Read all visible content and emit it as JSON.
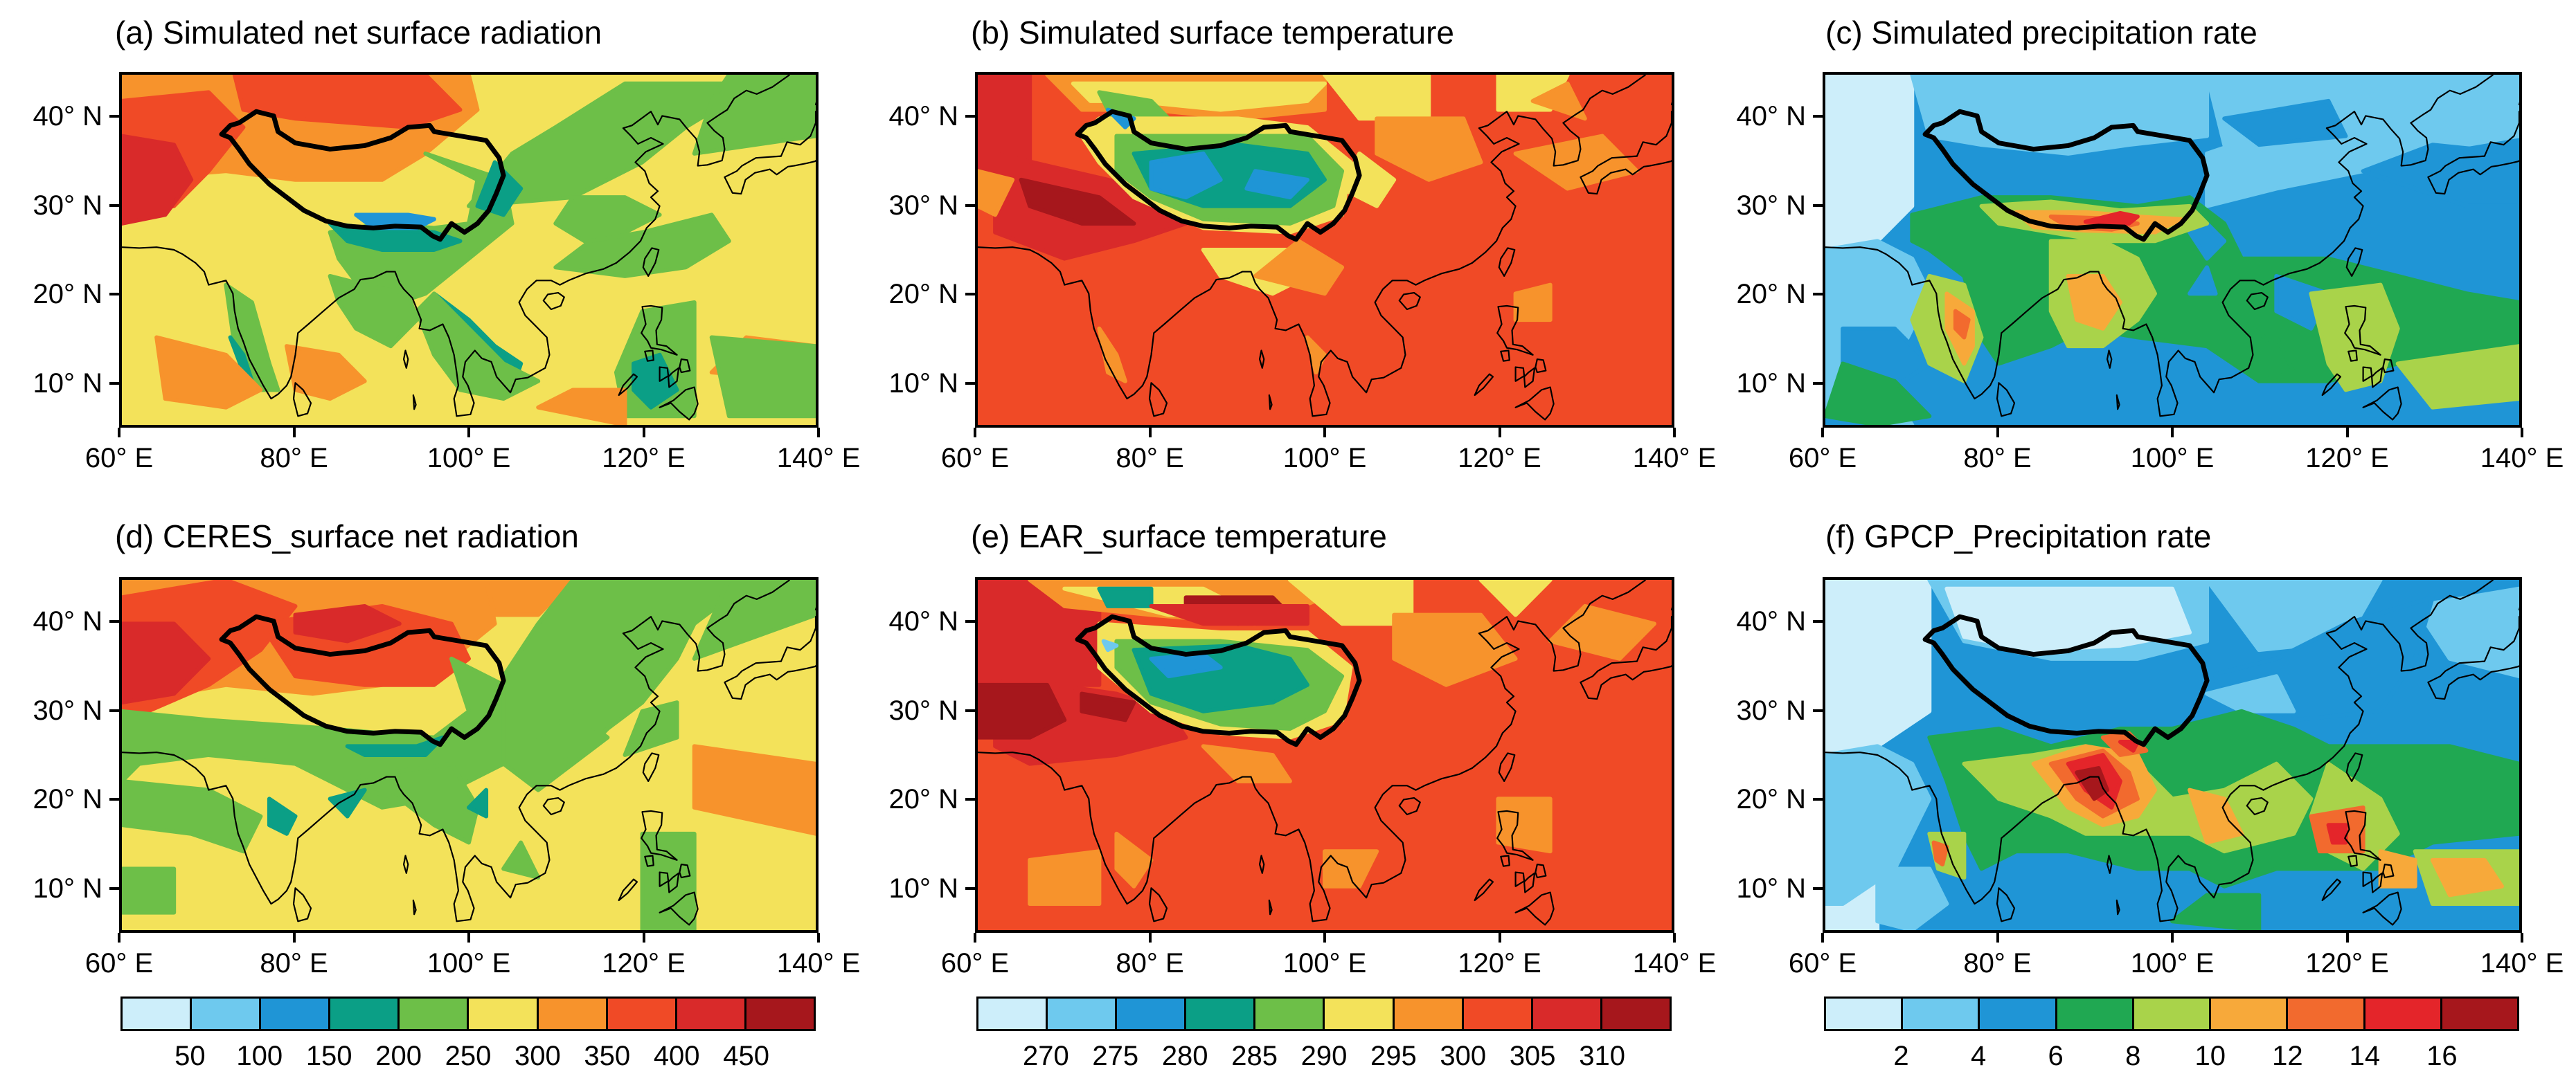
{
  "panels": [
    {
      "id": "a",
      "title": "(a) Simulated net surface radiation",
      "palette": "rad",
      "pattern": "rad_sim"
    },
    {
      "id": "b",
      "title": "(b) Simulated surface temperature",
      "palette": "temp",
      "pattern": "temp_sim"
    },
    {
      "id": "c",
      "title": "(c) Simulated precipitation rate",
      "palette": "prec",
      "pattern": "prec_sim"
    },
    {
      "id": "d",
      "title": "(d) CERES_surface net radiation",
      "palette": "rad",
      "pattern": "rad_obs"
    },
    {
      "id": "e",
      "title": "(e) EAR_surface  temperature",
      "palette": "temp",
      "pattern": "temp_obs"
    },
    {
      "id": "f",
      "title": "(f) GPCP_Precipitation rate",
      "palette": "prec",
      "pattern": "prec_obs"
    }
  ],
  "lat_labels": [
    "40° N",
    "30° N",
    "20° N",
    "10° N"
  ],
  "lon_labels": [
    "60° E",
    "80° E",
    "100° E",
    "120° E",
    "140° E"
  ],
  "colorbars": {
    "rad": {
      "labels": [
        "50",
        "100",
        "150",
        "200",
        "250",
        "300",
        "350",
        "400",
        "450"
      ],
      "colors": [
        "#cdeefa",
        "#6ec9ee",
        "#1f95d6",
        "#0b9f86",
        "#6dbf48",
        "#f3e25a",
        "#f7932c",
        "#f04a26",
        "#d92a2a",
        "#a6171c"
      ]
    },
    "temp": {
      "labels": [
        "270",
        "275",
        "280",
        "285",
        "290",
        "295",
        "300",
        "305",
        "310"
      ],
      "colors": [
        "#cdeefa",
        "#6ec9ee",
        "#1f95d6",
        "#0b9f86",
        "#6dbf48",
        "#f3e25a",
        "#f7932c",
        "#f04a26",
        "#d92a2a",
        "#a6171c"
      ]
    },
    "prec": {
      "labels": [
        "2",
        "4",
        "6",
        "8",
        "10",
        "12",
        "14",
        "16"
      ],
      "colors": [
        "#cdeefa",
        "#6ec9ee",
        "#1f95d6",
        "#20a852",
        "#a9d34a",
        "#f7a93a",
        "#f26a2e",
        "#e4252a",
        "#a6171c"
      ]
    }
  }
}
